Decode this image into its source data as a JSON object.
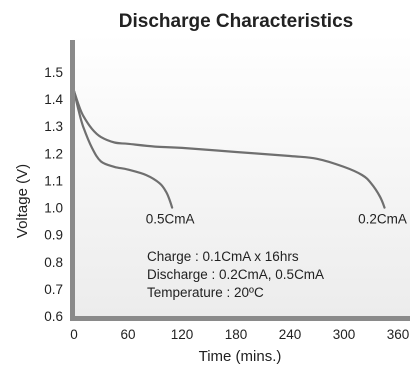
{
  "chart_data": {
    "type": "line",
    "title": "Discharge Characteristics",
    "xlabel": "Time (mins.)",
    "ylabel": "Voltage (V)",
    "xlim": [
      0,
      360
    ],
    "ylim": [
      0.6,
      1.5
    ],
    "xticks": [
      "0",
      "60",
      "120",
      "180",
      "240",
      "300",
      "360"
    ],
    "yticks": [
      "0.6",
      "0.7",
      "0.8",
      "0.9",
      "1.0",
      "1.1",
      "1.2",
      "1.3",
      "1.4",
      "1.5"
    ],
    "grid": false,
    "series": [
      {
        "name": "0.2CmA",
        "x": [
          0,
          5,
          10,
          20,
          30,
          45,
          60,
          90,
          120,
          180,
          240,
          270,
          300,
          320,
          330,
          340,
          345
        ],
        "y": [
          1.43,
          1.38,
          1.34,
          1.29,
          1.26,
          1.24,
          1.235,
          1.225,
          1.22,
          1.205,
          1.19,
          1.18,
          1.15,
          1.12,
          1.09,
          1.04,
          1.0
        ]
      },
      {
        "name": "0.5CmA",
        "x": [
          0,
          5,
          10,
          20,
          30,
          45,
          60,
          80,
          95,
          102,
          106,
          109
        ],
        "y": [
          1.43,
          1.36,
          1.3,
          1.22,
          1.17,
          1.15,
          1.14,
          1.12,
          1.09,
          1.06,
          1.03,
          1.0
        ]
      }
    ],
    "annotations": [
      "Charge : 0.1CmA x 16hrs",
      "Discharge : 0.2CmA, 0.5CmA",
      "Temperature : 20ºC"
    ]
  }
}
